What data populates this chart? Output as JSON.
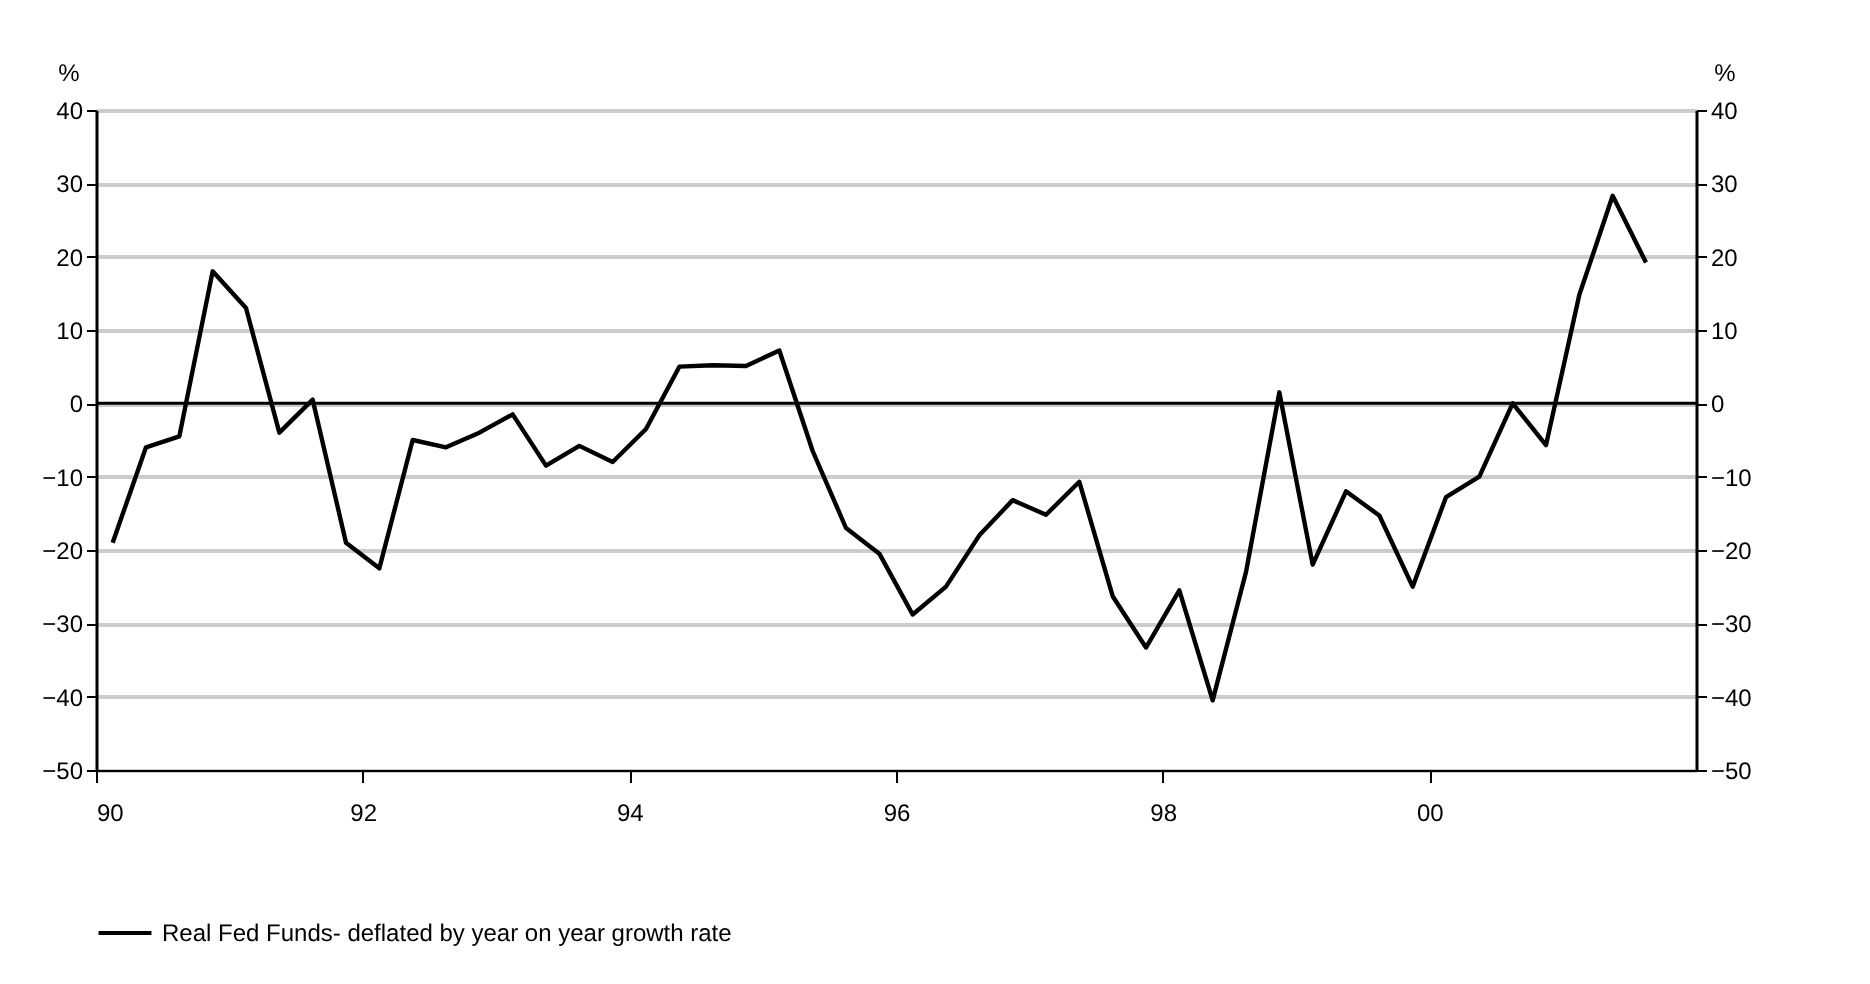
{
  "chart_data": {
    "type": "line",
    "ylabel": "%",
    "y2label": "%",
    "x": [
      1990.125,
      1990.375,
      1990.625,
      1990.875,
      1991.125,
      1991.375,
      1991.625,
      1991.875,
      1992.125,
      1992.375,
      1992.625,
      1992.875,
      1993.125,
      1993.375,
      1993.625,
      1993.875,
      1994.125,
      1994.375,
      1994.625,
      1994.875,
      1995.125,
      1995.375,
      1995.625,
      1995.875,
      1996.125,
      1996.375,
      1996.625,
      1996.875,
      1997.125,
      1997.375,
      1997.625,
      1997.875,
      1998.125,
      1998.375,
      1998.625,
      1998.875,
      1999.125,
      1999.375,
      1999.625,
      1999.875,
      2000.125,
      2000.375,
      2000.625,
      2000.875,
      2001.125,
      2001.375,
      2001.625
    ],
    "series": [
      {
        "name": "Real Fed Funds- deflated by year on year growth rate",
        "color": "#000000",
        "values": [
          -19,
          -6,
          -4.5,
          18,
          13,
          -4,
          0.5,
          -19,
          -22.5,
          -5,
          -6,
          -4,
          -1.5,
          -8.5,
          -5.8,
          -8,
          -3.5,
          5,
          5.2,
          5.1,
          7.2,
          -6.5,
          -17,
          -20.5,
          -28.8,
          -25,
          -18,
          -13.2,
          -15.2,
          -10.7,
          -26.3,
          -33.3,
          -25.5,
          -40.5,
          -23,
          1.5,
          -22,
          -12,
          -15.3,
          -25,
          -12.8,
          -10,
          0,
          -5.7,
          14.8,
          28.3,
          19.2
        ]
      }
    ],
    "xlim": [
      1990,
      2002
    ],
    "xticks": [
      {
        "value": 1990,
        "label": "90"
      },
      {
        "value": 1992,
        "label": "92"
      },
      {
        "value": 1994,
        "label": "94"
      },
      {
        "value": 1996,
        "label": "96"
      },
      {
        "value": 1998,
        "label": "98"
      },
      {
        "value": 2000,
        "label": "00"
      }
    ],
    "ylim": [
      -50,
      40
    ],
    "yticks": [
      -50,
      -40,
      -30,
      -20,
      -10,
      0,
      10,
      20,
      30,
      40
    ],
    "y2lim": [
      -50,
      40
    ],
    "y2ticks": [
      -50,
      -40,
      -30,
      -20,
      -10,
      0,
      10,
      20,
      30,
      40
    ],
    "ref_lines": [
      {
        "axis": "y",
        "value": 0,
        "color": "#000000"
      }
    ],
    "grid": "y",
    "legend": "bottom",
    "line_style": "solid",
    "marker": "none"
  }
}
